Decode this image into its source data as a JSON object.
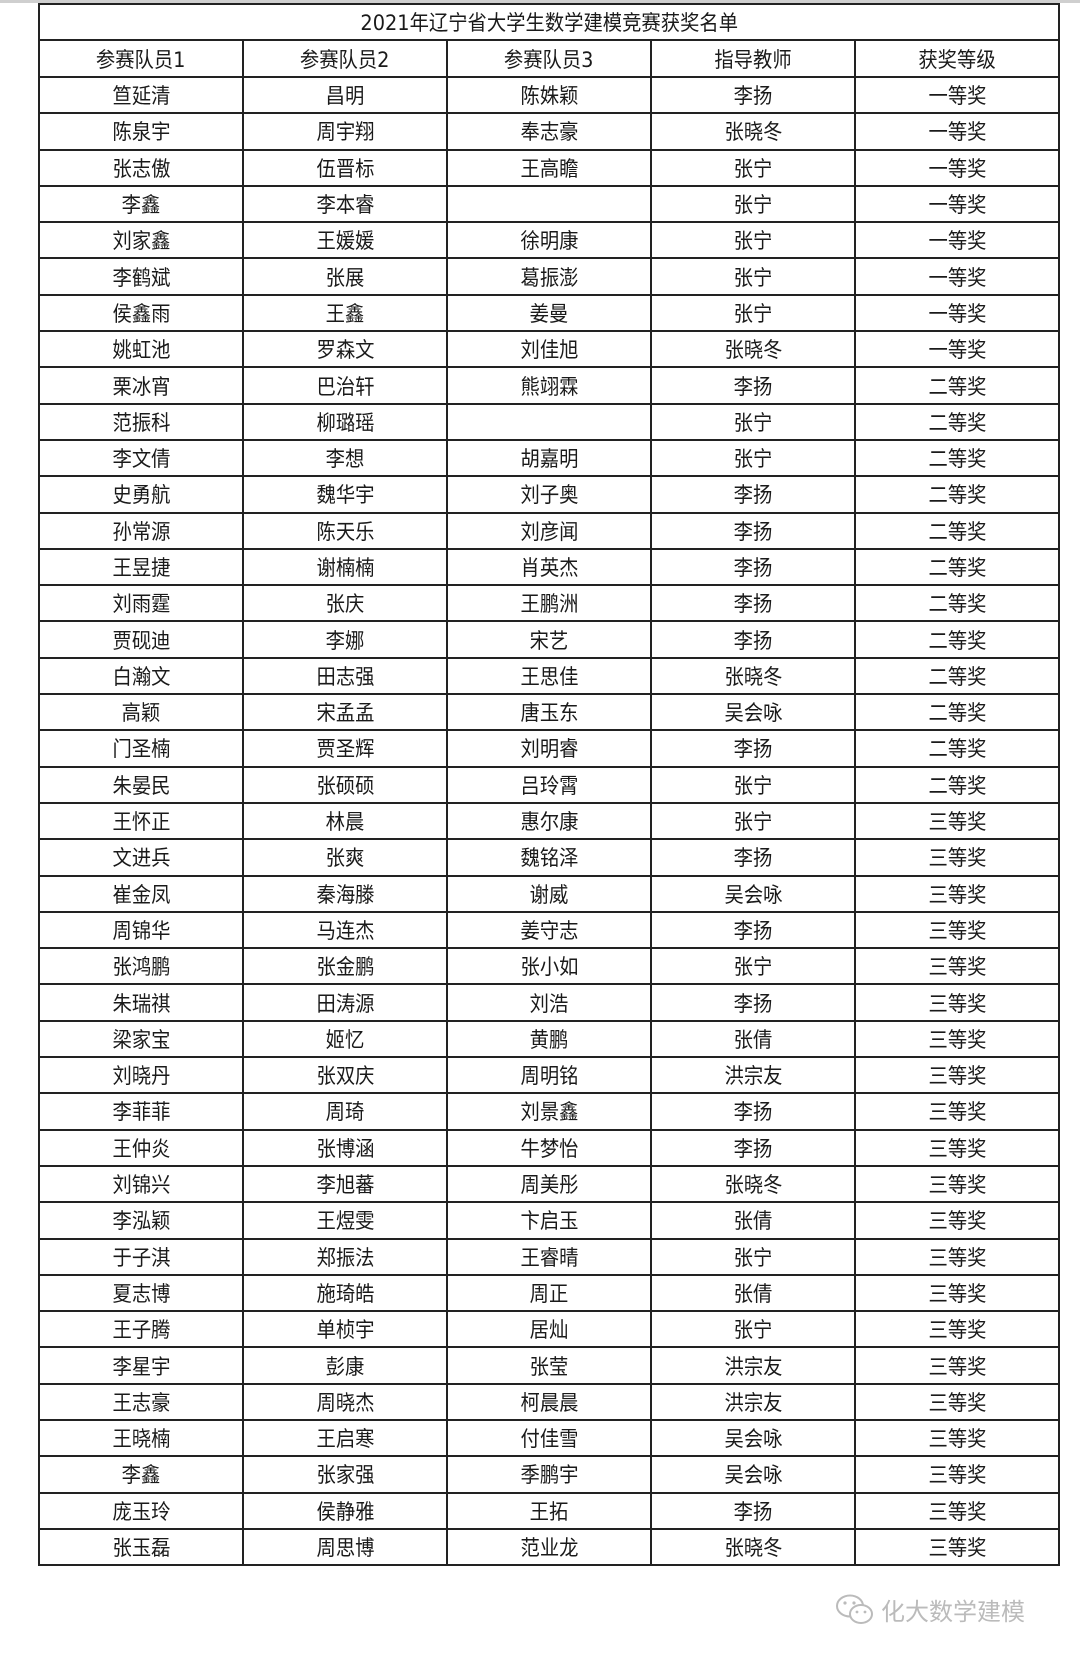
{
  "title": "2021年辽宁省大学生数学建模竞赛获奖名单",
  "headers": [
    "参赛队员1",
    "参赛队员2",
    "参赛队员3",
    "指导教师",
    "获奖等级"
  ],
  "rows": [
    [
      "笪延清",
      "昌明",
      "陈姝颖",
      "李扬",
      "一等奖"
    ],
    [
      "陈泉宇",
      "周宇翔",
      "奉志豪",
      "张晓冬",
      "一等奖"
    ],
    [
      "张志傲",
      "伍晋标",
      "王高瞻",
      "张宁",
      "一等奖"
    ],
    [
      "李鑫",
      "李本睿",
      "",
      "张宁",
      "一等奖"
    ],
    [
      "刘家鑫",
      "王媛媛",
      "徐明康",
      "张宁",
      "一等奖"
    ],
    [
      "李鹤斌",
      "张展",
      "葛振澎",
      "张宁",
      "一等奖"
    ],
    [
      "侯鑫雨",
      "王鑫",
      "姜曼",
      "张宁",
      "一等奖"
    ],
    [
      "姚虹池",
      "罗森文",
      "刘佳旭",
      "张晓冬",
      "一等奖"
    ],
    [
      "栗冰宵",
      "巴治轩",
      "熊翊霖",
      "李扬",
      "二等奖"
    ],
    [
      "范振科",
      "柳璐瑶",
      "",
      "张宁",
      "二等奖"
    ],
    [
      "李文倩",
      "李想",
      "胡嘉明",
      "张宁",
      "二等奖"
    ],
    [
      "史勇航",
      "魏华宇",
      "刘子奥",
      "李扬",
      "二等奖"
    ],
    [
      "孙常源",
      "陈天乐",
      "刘彦闻",
      "李扬",
      "二等奖"
    ],
    [
      "王昱捷",
      "谢楠楠",
      "肖英杰",
      "李扬",
      "二等奖"
    ],
    [
      "刘雨霆",
      "张庆",
      "王鹏洲",
      "李扬",
      "二等奖"
    ],
    [
      "贾砚迪",
      "李娜",
      "宋艺",
      "李扬",
      "二等奖"
    ],
    [
      "白瀚文",
      "田志强",
      "王思佳",
      "张晓冬",
      "二等奖"
    ],
    [
      "高颖",
      "宋孟孟",
      "唐玉东",
      "吴会咏",
      "二等奖"
    ],
    [
      "门圣楠",
      "贾圣辉",
      "刘明睿",
      "李扬",
      "二等奖"
    ],
    [
      "朱晏民",
      "张硕硕",
      "吕玲霄",
      "张宁",
      "二等奖"
    ],
    [
      "王怀正",
      "林晨",
      "惠尔康",
      "张宁",
      "三等奖"
    ],
    [
      "文进兵",
      "张爽",
      "魏铭泽",
      "李扬",
      "三等奖"
    ],
    [
      "崔金凤",
      "秦海滕",
      "谢威",
      "吴会咏",
      "三等奖"
    ],
    [
      "周锦华",
      "马连杰",
      "姜守志",
      "李扬",
      "三等奖"
    ],
    [
      "张鸿鹏",
      "张金鹏",
      "张小如",
      "张宁",
      "三等奖"
    ],
    [
      "朱瑞祺",
      "田涛源",
      "刘浩",
      "李扬",
      "三等奖"
    ],
    [
      "梁家宝",
      "姬忆",
      "黄鹏",
      "张倩",
      "三等奖"
    ],
    [
      "刘晓丹",
      "张双庆",
      "周明铭",
      "洪宗友",
      "三等奖"
    ],
    [
      "李菲菲",
      "周琦",
      "刘景鑫",
      "李扬",
      "三等奖"
    ],
    [
      "王仲炎",
      "张博涵",
      "牛梦怡",
      "李扬",
      "三等奖"
    ],
    [
      "刘锦兴",
      "李旭蕃",
      "周美彤",
      "张晓冬",
      "三等奖"
    ],
    [
      "李泓颖",
      "王煜雯",
      "卞启玉",
      "张倩",
      "三等奖"
    ],
    [
      "于子淇",
      "郑振法",
      "王睿晴",
      "张宁",
      "三等奖"
    ],
    [
      "夏志博",
      "施琦皓",
      "周正",
      "张倩",
      "三等奖"
    ],
    [
      "王子腾",
      "单桢宇",
      "居灿",
      "张宁",
      "三等奖"
    ],
    [
      "李星宇",
      "彭康",
      "张莹",
      "洪宗友",
      "三等奖"
    ],
    [
      "王志豪",
      "周晓杰",
      "柯晨晨",
      "洪宗友",
      "三等奖"
    ],
    [
      "王晓楠",
      "王启寒",
      "付佳雪",
      "吴会咏",
      "三等奖"
    ],
    [
      "李鑫",
      "张家强",
      "季鹏宇",
      "吴会咏",
      "三等奖"
    ],
    [
      "庞玉玲",
      "侯静雅",
      "王拓",
      "李扬",
      "三等奖"
    ],
    [
      "张玉磊",
      "周思博",
      "范业龙",
      "张晓冬",
      "三等奖"
    ]
  ],
  "watermark": {
    "icon": "wechat-icon",
    "text": "化大数学建模"
  }
}
